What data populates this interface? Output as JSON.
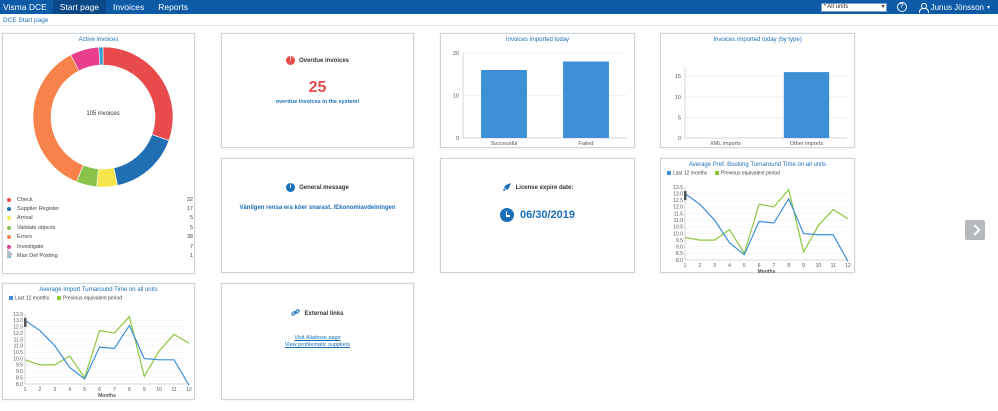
{
  "header": {
    "brand": "Visma DCE",
    "nav": [
      "Start page",
      "Invoices",
      "Reports"
    ],
    "unit_select": "* All units",
    "help": "?",
    "user": "Junus Jönsson"
  },
  "breadcrumb": "DCE Start page",
  "active_invoices": {
    "title": "Active invoices",
    "center": "105 invoices",
    "items": [
      {
        "label": "Check",
        "value": "32",
        "color": "#e84b4b"
      },
      {
        "label": "Supplier Register",
        "value": "17",
        "color": "#1f6fb2"
      },
      {
        "label": "Arrival",
        "value": "5",
        "color": "#f5e64b"
      },
      {
        "label": "Validate objects",
        "value": "5",
        "color": "#8bc34a"
      },
      {
        "label": "Errors",
        "value": "38",
        "color": "#f7824a"
      },
      {
        "label": "Investigate",
        "value": "7",
        "color": "#e83e8c"
      },
      {
        "label": "Man Def Posting",
        "value": "1",
        "color": "#2a9fd6"
      }
    ]
  },
  "overdue": {
    "title": "Overdue invoices",
    "count": "25",
    "text": "overdue invoices in the system!",
    "icon": "exclamation-icon"
  },
  "general": {
    "title": "General message",
    "message": "Vänligen rensa era köer snarast. /Ekonomiavdelningen",
    "icon": "info-icon"
  },
  "external": {
    "title": "External links",
    "links": [
      "Visit Aliabose page",
      "View problematic suppliers"
    ],
    "icon": "link-icon"
  },
  "license": {
    "title": "License expire date:",
    "date": "06/30/2019",
    "icon": "rocket-icon"
  },
  "chart_data": [
    {
      "id": "imported_today",
      "type": "bar",
      "title": "Invoices imported today",
      "categories": [
        "Successful",
        "Failed"
      ],
      "values": [
        16,
        18
      ],
      "ylim": [
        0,
        20
      ],
      "yticks": [
        0,
        10,
        20
      ],
      "color": "#3d8fd6"
    },
    {
      "id": "imported_by_type",
      "type": "bar",
      "title": "Invoices imported today (by type)",
      "categories": [
        "XML imports",
        "Other imports"
      ],
      "values": [
        0,
        16
      ],
      "ylim": [
        0,
        17
      ],
      "yticks": [
        0,
        5,
        10,
        15
      ],
      "color": "#3d8fd6"
    },
    {
      "id": "pref_booking",
      "type": "line",
      "title": "Average Pref. Booking Turnaround Time on all units",
      "xlabel": "Months",
      "x": [
        1,
        2,
        3,
        4,
        5,
        6,
        7,
        8,
        9,
        10,
        11,
        12
      ],
      "ylim": [
        8.0,
        13.5
      ],
      "yticks": [
        "8.0",
        "8.5",
        "9.0",
        "9.5",
        "10.0",
        "10.5",
        "11.0",
        "11.5",
        "12.0",
        "12.5",
        "13.0",
        "13.5"
      ],
      "series": [
        {
          "name": "Last 12 months",
          "color": "#3d8fd6",
          "values": [
            13.0,
            12.2,
            11.0,
            9.3,
            8.4,
            10.9,
            10.8,
            12.6,
            10.0,
            9.9,
            9.9,
            7.9
          ]
        },
        {
          "name": "Previous equivalent period",
          "color": "#8dc63f",
          "values": [
            9.7,
            9.5,
            9.5,
            10.3,
            8.5,
            12.2,
            12.0,
            13.3,
            8.6,
            10.6,
            11.8,
            11.1
          ]
        }
      ]
    },
    {
      "id": "import_turnaround",
      "type": "line",
      "title": "Average Import Turnaround Time on all units",
      "xlabel": "Months",
      "x": [
        1,
        2,
        3,
        4,
        5,
        6,
        7,
        8,
        9,
        10,
        11,
        12
      ],
      "ylim": [
        8.0,
        13.5
      ],
      "yticks": [
        "8.0",
        "8.5",
        "9.0",
        "9.5",
        "10.0",
        "10.5",
        "11.0",
        "11.5",
        "12.0",
        "12.5",
        "13.0",
        "13.5"
      ],
      "series": [
        {
          "name": "Last 12 months",
          "color": "#3d8fd6",
          "values": [
            13.0,
            12.2,
            11.0,
            9.3,
            8.4,
            10.9,
            10.8,
            12.6,
            10.0,
            9.9,
            9.9,
            7.9
          ]
        },
        {
          "name": "Previous equivalent period",
          "color": "#8dc63f",
          "values": [
            9.9,
            9.5,
            9.5,
            10.2,
            8.5,
            12.2,
            12.0,
            13.3,
            8.6,
            10.6,
            11.9,
            11.2
          ]
        }
      ]
    }
  ]
}
